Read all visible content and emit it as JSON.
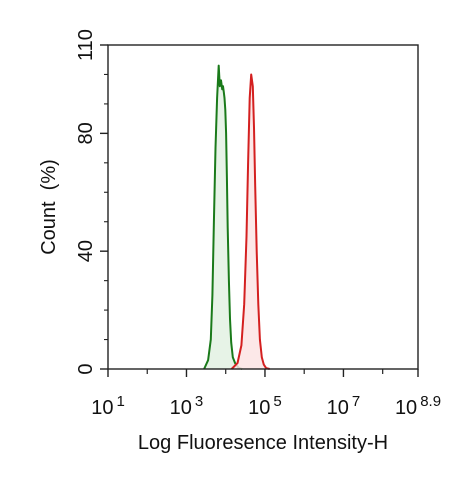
{
  "chart_data": {
    "type": "area",
    "title": "",
    "xlabel": "Log Fluoresence Intensity-H",
    "ylabel": "Count  (%)",
    "x_scale": "log10",
    "xlim": [
      1,
      8.9
    ],
    "ylim": [
      0,
      110
    ],
    "x_ticks": [
      {
        "value": 1,
        "base": "10",
        "exponent": "1"
      },
      {
        "value": 3,
        "base": "10",
        "exponent": "3"
      },
      {
        "value": 5,
        "base": "10",
        "exponent": "5"
      },
      {
        "value": 7,
        "base": "10",
        "exponent": "7"
      },
      {
        "value": 8.9,
        "base": "10",
        "exponent": "8.9"
      }
    ],
    "y_ticks": [
      0,
      40,
      80,
      110
    ],
    "grid": false,
    "series": [
      {
        "color": "#1a7a1a",
        "fill": "#e3f1e3",
        "x": [
          3.45,
          3.55,
          3.62,
          3.66,
          3.7,
          3.74,
          3.78,
          3.82,
          3.85,
          3.88,
          3.91,
          3.93,
          3.95,
          3.97,
          3.99,
          4.01,
          4.03,
          4.05,
          4.08,
          4.11,
          4.14,
          4.18,
          4.24,
          4.32,
          4.42
        ],
        "values": [
          0,
          3,
          10,
          25,
          50,
          75,
          92,
          103,
          96,
          98,
          95,
          96,
          94,
          92,
          88,
          80,
          65,
          48,
          30,
          17,
          9,
          4,
          2,
          0.5,
          0
        ]
      },
      {
        "color": "#d42020",
        "fill": "#fbe4e4",
        "x": [
          4.15,
          4.3,
          4.4,
          4.47,
          4.53,
          4.57,
          4.61,
          4.65,
          4.69,
          4.72,
          4.75,
          4.79,
          4.83,
          4.87,
          4.92,
          4.97,
          5.03,
          5.12
        ],
        "values": [
          0,
          2,
          8,
          22,
          45,
          70,
          92,
          100,
          96,
          82,
          62,
          40,
          22,
          10,
          4,
          1.5,
          0.3,
          0
        ]
      }
    ]
  }
}
